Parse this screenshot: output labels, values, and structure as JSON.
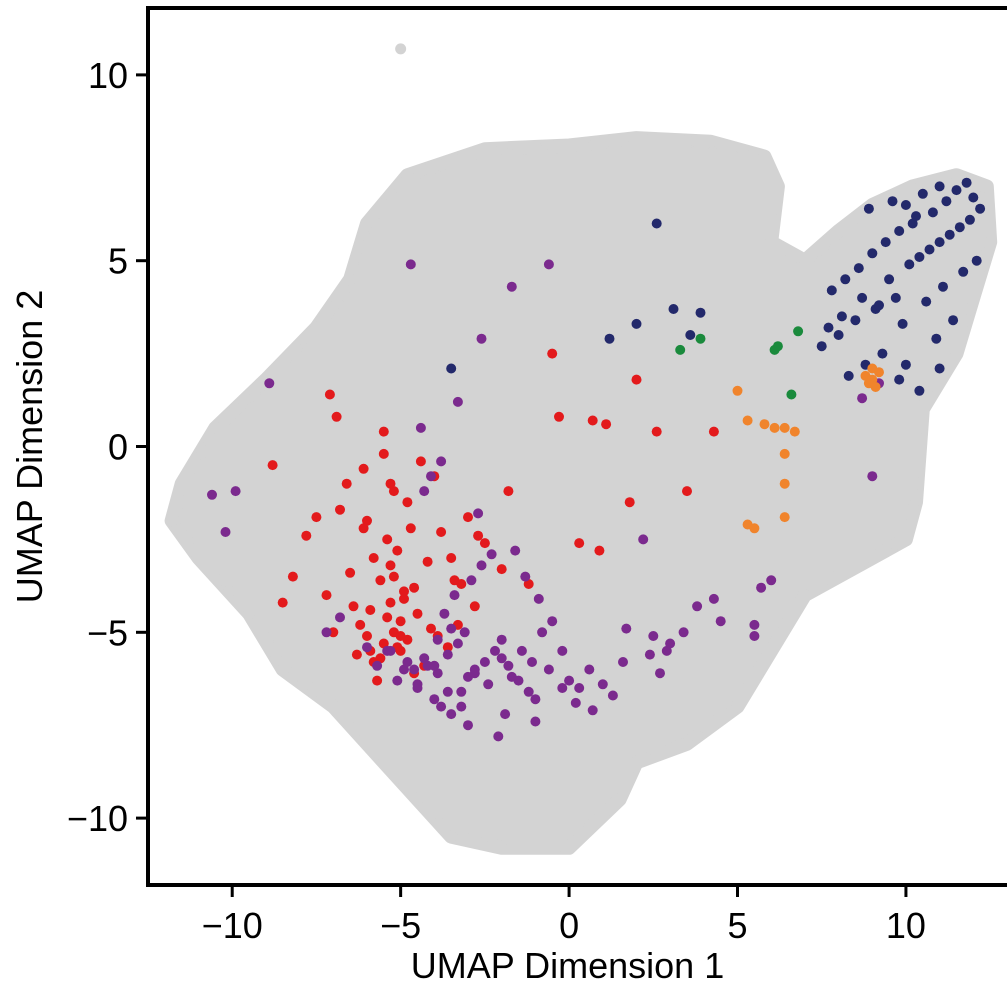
{
  "chart_data": {
    "type": "scatter",
    "title": "",
    "xlabel": "UMAP Dimension 1",
    "ylabel": "UMAP Dimension 2",
    "xlim": [
      -12.5,
      13.0
    ],
    "ylim": [
      -11.8,
      11.8
    ],
    "xticks": [
      -10,
      -5,
      0,
      5,
      10
    ],
    "yticks": [
      -10,
      -5,
      0,
      5,
      10
    ],
    "xtick_labels": [
      "−10",
      "−5",
      "0",
      "5",
      "10"
    ],
    "ytick_labels": [
      "−10",
      "−5",
      "0",
      "5",
      "10"
    ],
    "grid": false,
    "legend": "none",
    "background_cloud": {
      "color": "#d3d3d3",
      "outline": [
        [
          -11.5,
          -1.0
        ],
        [
          -10.5,
          0.5
        ],
        [
          -9.0,
          1.8
        ],
        [
          -7.5,
          3.2
        ],
        [
          -6.5,
          4.5
        ],
        [
          -6.0,
          6.0
        ],
        [
          -4.8,
          7.3
        ],
        [
          -2.5,
          8.0
        ],
        [
          0.0,
          8.1
        ],
        [
          2.0,
          8.3
        ],
        [
          4.2,
          8.2
        ],
        [
          5.8,
          7.8
        ],
        [
          6.2,
          7.0
        ],
        [
          6.0,
          5.5
        ],
        [
          7.0,
          5.0
        ],
        [
          8.0,
          5.8
        ],
        [
          9.0,
          6.5
        ],
        [
          10.2,
          7.0
        ],
        [
          11.5,
          7.3
        ],
        [
          12.4,
          7.0
        ],
        [
          12.5,
          5.5
        ],
        [
          12.0,
          4.0
        ],
        [
          11.5,
          2.5
        ],
        [
          10.5,
          1.0
        ],
        [
          10.3,
          -1.5
        ],
        [
          10.0,
          -2.5
        ],
        [
          9.0,
          -3.0
        ],
        [
          7.0,
          -4.0
        ],
        [
          6.0,
          -5.5
        ],
        [
          5.0,
          -7.0
        ],
        [
          3.5,
          -8.0
        ],
        [
          2.0,
          -8.5
        ],
        [
          1.5,
          -9.5
        ],
        [
          0.0,
          -10.8
        ],
        [
          -2.0,
          -10.8
        ],
        [
          -3.5,
          -10.5
        ],
        [
          -4.5,
          -9.5
        ],
        [
          -5.5,
          -8.5
        ],
        [
          -7.0,
          -7.0
        ],
        [
          -8.5,
          -6.0
        ],
        [
          -9.5,
          -4.5
        ],
        [
          -11.0,
          -3.0
        ],
        [
          -11.8,
          -2.0
        ]
      ],
      "outlier": [
        -5.0,
        10.7
      ]
    },
    "series": [
      {
        "color": "#e31a1c",
        "x": [
          -6.0,
          -5.5,
          -5.2,
          -4.8,
          -5.0,
          -5.8,
          -6.2,
          -4.5,
          -5.3,
          -4.9,
          -5.6,
          -6.5,
          -4.2,
          -5.1,
          -5.4,
          -4.7,
          -6.0,
          -6.8,
          -7.2,
          -5.9,
          -5.0,
          -4.3,
          -4.6,
          -5.7,
          -6.3,
          -7.0,
          -5.2,
          -4.8,
          -3.8,
          -3.5,
          -3.2,
          -2.8,
          -2.5,
          -3.0,
          -4.0,
          -4.4,
          -5.5,
          -6.1,
          -6.6,
          -7.5,
          -7.8,
          -8.2,
          -8.5,
          -8.8,
          -7.1,
          -6.9,
          -5.3,
          -4.1,
          -3.6,
          -2.0,
          -1.2,
          -0.5,
          0.3,
          0.9,
          1.8,
          2.6,
          3.5,
          4.3,
          -6.4,
          -5.9,
          -5.6,
          -5.1,
          -4.9,
          -5.2,
          -5.4,
          -5.0,
          -5.8,
          -6.1,
          -4.6,
          -5.3,
          -5.5,
          -3.9,
          -3.3,
          -3.4,
          -2.7,
          -1.8,
          -0.3,
          0.7,
          2.0,
          1.1
        ],
        "y": [
          -5.1,
          -5.3,
          -5.0,
          -5.2,
          -5.5,
          -5.8,
          -4.8,
          -4.5,
          -4.2,
          -3.9,
          -3.6,
          -3.4,
          -3.1,
          -2.8,
          -2.5,
          -2.2,
          -2.0,
          -1.7,
          -4.0,
          -4.4,
          -4.7,
          -5.9,
          -6.1,
          -6.3,
          -5.6,
          -5.0,
          -1.2,
          -1.5,
          -2.3,
          -3.0,
          -3.7,
          -4.3,
          -2.6,
          -1.9,
          -0.8,
          -0.4,
          0.4,
          -0.6,
          -1.0,
          -1.9,
          -2.4,
          -3.5,
          -4.2,
          -0.5,
          1.4,
          0.8,
          -3.2,
          -4.9,
          -5.4,
          -3.3,
          -3.7,
          2.5,
          -2.6,
          -2.8,
          -1.5,
          0.4,
          -1.2,
          0.4,
          -4.3,
          -5.5,
          -5.7,
          -5.4,
          -4.1,
          -3.5,
          -4.6,
          -5.1,
          -3.0,
          -2.2,
          -3.8,
          -1.0,
          -0.2,
          -5.1,
          -4.8,
          -3.6,
          -2.4,
          -1.2,
          0.8,
          0.7,
          1.8,
          0.6
        ]
      },
      {
        "color": "#7b2a8e",
        "x": [
          -4.5,
          -4.0,
          -3.8,
          -3.5,
          -3.2,
          -3.0,
          -2.8,
          -2.5,
          -2.2,
          -2.0,
          -1.8,
          -1.5,
          -1.2,
          -1.0,
          -0.8,
          -0.5,
          -0.2,
          0.0,
          0.3,
          0.6,
          1.0,
          1.3,
          1.6,
          -4.2,
          -3.9,
          -3.6,
          -3.3,
          -3.1,
          -4.6,
          -4.8,
          -5.1,
          -5.4,
          -5.7,
          -6.0,
          -3.7,
          -3.4,
          -2.9,
          -2.6,
          -2.3,
          -4.3,
          -4.1,
          -3.8,
          -2.7,
          -1.6,
          -1.3,
          -0.9,
          2.2,
          2.5,
          1.7,
          2.9,
          3.4,
          4.3,
          5.5,
          5.7,
          6.0,
          -0.6,
          -1.7,
          -2.6,
          -3.3,
          -4.4,
          -4.7,
          -9.9,
          -10.2,
          -10.6,
          -8.9,
          -7.2,
          -6.8,
          -3.0,
          -2.1,
          -1.9,
          -1.0,
          -0.2,
          0.2,
          0.7,
          2.4,
          2.7,
          3.0,
          3.8,
          4.5,
          5.5,
          9.0,
          9.2,
          8.7,
          -5.3,
          -4.9,
          -4.5,
          -4.0,
          -3.6,
          -3.2,
          -2.8,
          -2.4,
          -2.0,
          -1.7,
          -1.4,
          -1.1,
          -0.6,
          -3.5,
          -3.9,
          -4.3
        ],
        "y": [
          -6.5,
          -6.8,
          -7.0,
          -7.2,
          -6.6,
          -6.2,
          -6.0,
          -5.8,
          -5.5,
          -5.2,
          -5.9,
          -6.3,
          -6.6,
          -6.8,
          -5.0,
          -4.7,
          -5.5,
          -6.3,
          -6.5,
          -6.0,
          -6.4,
          -6.7,
          -5.8,
          -5.9,
          -6.1,
          -5.6,
          -5.3,
          -5.0,
          -6.0,
          -5.8,
          -6.3,
          -5.5,
          -5.9,
          -5.4,
          -4.5,
          -4.0,
          -3.6,
          -3.2,
          -2.9,
          -1.2,
          -0.8,
          -0.4,
          -1.8,
          -2.8,
          -3.5,
          -4.1,
          -2.5,
          -5.1,
          -4.9,
          -5.5,
          -5.0,
          -4.1,
          -4.8,
          -3.8,
          -3.6,
          4.9,
          4.3,
          2.9,
          1.2,
          0.5,
          4.9,
          -1.2,
          -2.3,
          -1.3,
          1.7,
          -5.0,
          -4.6,
          -7.5,
          -7.8,
          -7.2,
          -7.4,
          -6.5,
          -6.9,
          -7.1,
          -5.6,
          -6.1,
          -5.3,
          -4.3,
          -4.7,
          -5.1,
          -0.8,
          1.7,
          1.3,
          -5.5,
          -6.0,
          -6.4,
          -5.9,
          -6.6,
          -7.0,
          -6.1,
          -6.4,
          -5.7,
          -6.2,
          -5.5,
          -5.8,
          -6.0,
          -4.9,
          -5.2,
          -5.7
        ]
      },
      {
        "color": "#23296b",
        "x": [
          10.0,
          10.5,
          11.0,
          11.5,
          12.0,
          11.8,
          11.2,
          10.8,
          10.2,
          9.8,
          9.4,
          9.0,
          8.6,
          8.2,
          7.8,
          9.5,
          10.1,
          10.7,
          11.3,
          11.9,
          12.2,
          11.6,
          11.0,
          10.4,
          9.7,
          9.1,
          8.5,
          8.0,
          7.5,
          9.9,
          10.6,
          11.1,
          9.3,
          8.8,
          8.3,
          10.9,
          11.4,
          12.1,
          10.3,
          9.6,
          8.9,
          11.7,
          10.0,
          9.2,
          8.7,
          8.1,
          7.7,
          9.8,
          10.4,
          11.0,
          3.6,
          3.9,
          2.6,
          3.1,
          1.2,
          2.0,
          -3.5
        ],
        "y": [
          6.5,
          6.8,
          7.0,
          6.9,
          6.7,
          7.1,
          6.6,
          6.3,
          6.0,
          5.8,
          5.5,
          5.2,
          4.8,
          4.5,
          4.2,
          4.5,
          4.9,
          5.3,
          5.7,
          6.1,
          6.4,
          5.9,
          5.5,
          5.1,
          4.0,
          3.7,
          3.4,
          3.0,
          2.7,
          3.3,
          3.9,
          4.3,
          2.5,
          2.2,
          1.9,
          2.9,
          3.4,
          5.0,
          6.2,
          6.6,
          6.4,
          4.7,
          2.2,
          3.8,
          4.0,
          3.5,
          3.2,
          1.8,
          1.5,
          2.1,
          3.0,
          3.6,
          6.0,
          3.7,
          2.9,
          3.3,
          2.1
        ]
      },
      {
        "color": "#1a8a3c",
        "x": [
          3.3,
          3.9,
          6.1,
          6.2,
          6.6,
          6.8
        ],
        "y": [
          2.6,
          2.9,
          2.6,
          2.7,
          1.4,
          3.1
        ]
      },
      {
        "color": "#f0842c",
        "x": [
          5.0,
          5.3,
          5.8,
          6.1,
          6.4,
          6.7,
          6.4,
          6.4,
          6.4,
          5.3,
          5.5,
          8.8,
          9.0,
          9.2,
          9.0,
          8.9,
          9.1
        ],
        "y": [
          1.5,
          0.7,
          0.6,
          0.5,
          0.5,
          0.4,
          -0.2,
          -1.0,
          -1.9,
          -2.1,
          -2.2,
          1.9,
          2.1,
          2.0,
          1.8,
          1.7,
          1.6
        ]
      }
    ]
  }
}
